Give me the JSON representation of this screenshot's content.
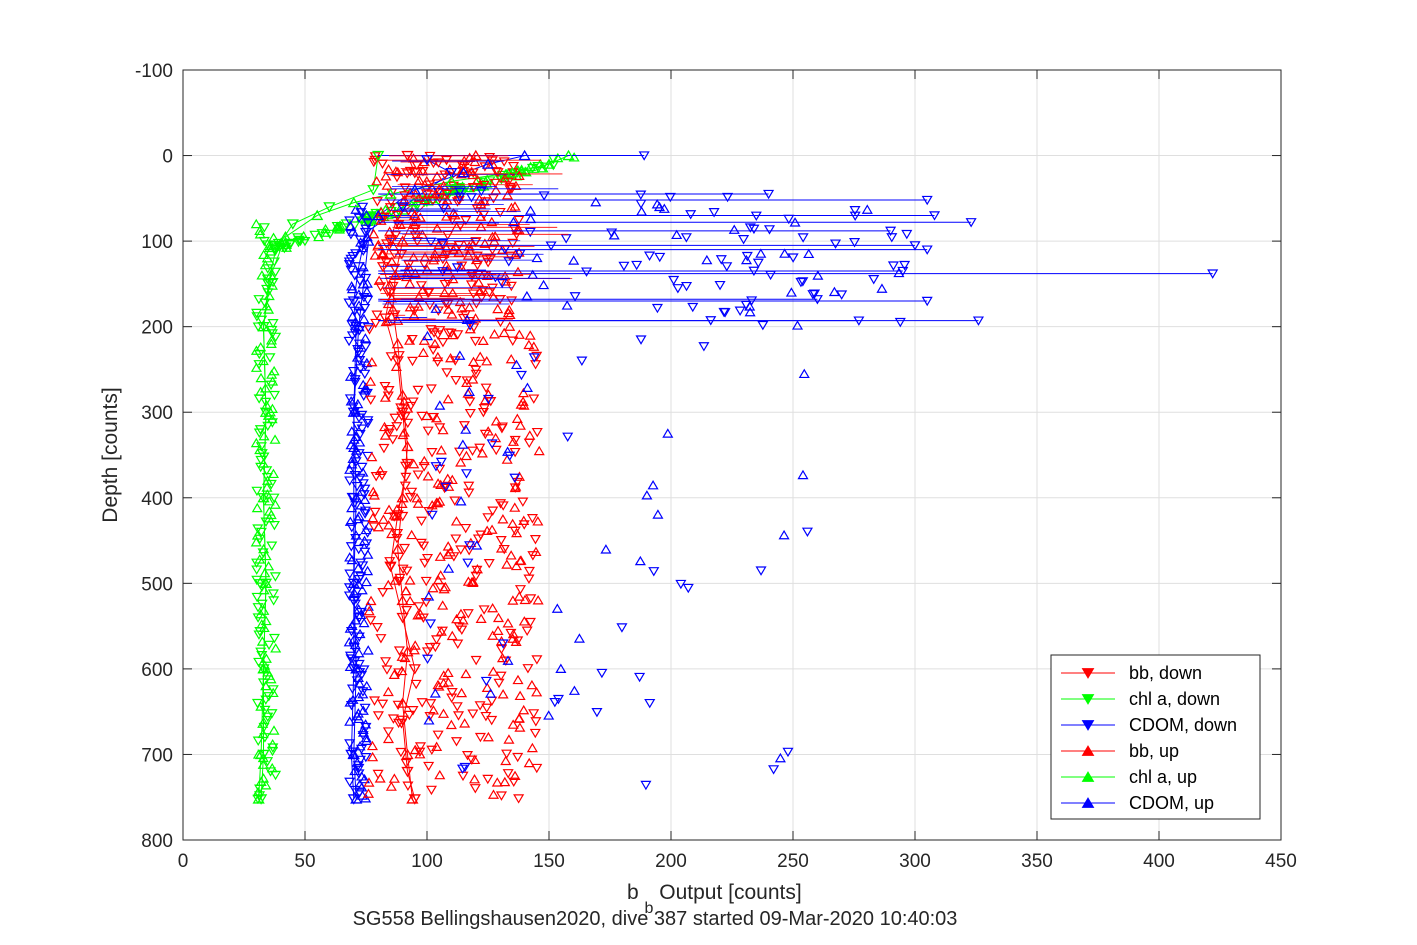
{
  "chart_data": {
    "type": "scatter",
    "title": "",
    "xlabel_main": "b",
    "xlabel_sub": "b",
    "xlabel_rest": " Output [counts]",
    "ylabel": "Depth [counts]",
    "caption": "SG558 Bellingshausen2020, dive 387 started 09-Mar-2020 10:40:03",
    "xlim": [
      0,
      450
    ],
    "ylim": [
      -100,
      800
    ],
    "y_reversed": true,
    "grid": true,
    "x_ticks": [
      0,
      50,
      100,
      150,
      200,
      250,
      300,
      350,
      400,
      450
    ],
    "y_ticks": [
      -100,
      0,
      100,
      200,
      300,
      400,
      500,
      600,
      700,
      800
    ],
    "legend_position": "bottom-right",
    "series": [
      {
        "name": "bb, down",
        "color": "#ff0000",
        "marker": "triangle-down",
        "line": true,
        "points": [
          [
            92,
            0
          ],
          [
            95,
            20
          ],
          [
            100,
            45
          ],
          [
            88,
            70
          ],
          [
            85,
            100
          ],
          [
            82,
            130
          ],
          [
            85,
            160
          ],
          [
            83,
            190
          ],
          [
            88,
            240
          ],
          [
            90,
            300
          ],
          [
            92,
            360
          ],
          [
            88,
            420
          ],
          [
            85,
            480
          ],
          [
            90,
            540
          ],
          [
            95,
            600
          ],
          [
            90,
            660
          ],
          [
            92,
            720
          ],
          [
            95,
            752
          ]
        ]
      },
      {
        "name": "chl a, down",
        "color": "#00ff00",
        "marker": "triangle-down",
        "line": true,
        "points": [
          [
            80,
            0
          ],
          [
            78,
            40
          ],
          [
            60,
            60
          ],
          [
            45,
            80
          ],
          [
            38,
            110
          ],
          [
            35,
            150
          ],
          [
            33,
            200
          ],
          [
            34,
            300
          ],
          [
            33,
            400
          ],
          [
            34,
            500
          ],
          [
            33,
            600
          ],
          [
            33,
            700
          ],
          [
            32,
            752
          ]
        ]
      },
      {
        "name": "CDOM, down",
        "color": "#0000ff",
        "marker": "triangle-down",
        "line": true,
        "points": [
          [
            100,
            5
          ],
          [
            110,
            20
          ],
          [
            90,
            60
          ],
          [
            75,
            90
          ],
          [
            72,
            130
          ],
          [
            70,
            170
          ],
          [
            71,
            200
          ],
          [
            70,
            300
          ],
          [
            70,
            400
          ],
          [
            70,
            500
          ],
          [
            70,
            600
          ],
          [
            69,
            700
          ],
          [
            70,
            752
          ]
        ]
      },
      {
        "name": "bb, up",
        "color": "#ff0000",
        "marker": "triangle-up",
        "line": true,
        "points": [
          [
            94,
            752
          ],
          [
            92,
            700
          ],
          [
            90,
            640
          ],
          [
            92,
            580
          ],
          [
            90,
            520
          ],
          [
            88,
            460
          ],
          [
            90,
            400
          ],
          [
            92,
            340
          ],
          [
            90,
            280
          ],
          [
            88,
            220
          ],
          [
            86,
            180
          ],
          [
            87,
            140
          ],
          [
            90,
            100
          ],
          [
            95,
            70
          ],
          [
            105,
            40
          ],
          [
            115,
            15
          ],
          [
            120,
            0
          ]
        ]
      },
      {
        "name": "chl a, up",
        "color": "#00ff00",
        "marker": "triangle-up",
        "line": true,
        "points": [
          [
            31,
            752
          ],
          [
            32,
            700
          ],
          [
            33,
            600
          ],
          [
            34,
            500
          ],
          [
            33,
            400
          ],
          [
            34,
            300
          ],
          [
            33,
            200
          ],
          [
            36,
            140
          ],
          [
            42,
            95
          ],
          [
            55,
            70
          ],
          [
            70,
            55
          ],
          [
            85,
            45
          ],
          [
            110,
            30
          ],
          [
            135,
            20
          ],
          [
            150,
            10
          ],
          [
            158,
            0
          ]
        ]
      },
      {
        "name": "CDOM, up",
        "color": "#0000ff",
        "marker": "triangle-up",
        "line": true,
        "points": [
          [
            71,
            752
          ],
          [
            70,
            700
          ],
          [
            71,
            600
          ],
          [
            70,
            500
          ],
          [
            71,
            400
          ],
          [
            70,
            300
          ],
          [
            72,
            200
          ],
          [
            74,
            150
          ],
          [
            76,
            100
          ],
          [
            80,
            70
          ],
          [
            95,
            40
          ],
          [
            115,
            20
          ],
          [
            125,
            10
          ],
          [
            140,
            0
          ]
        ]
      }
    ]
  }
}
